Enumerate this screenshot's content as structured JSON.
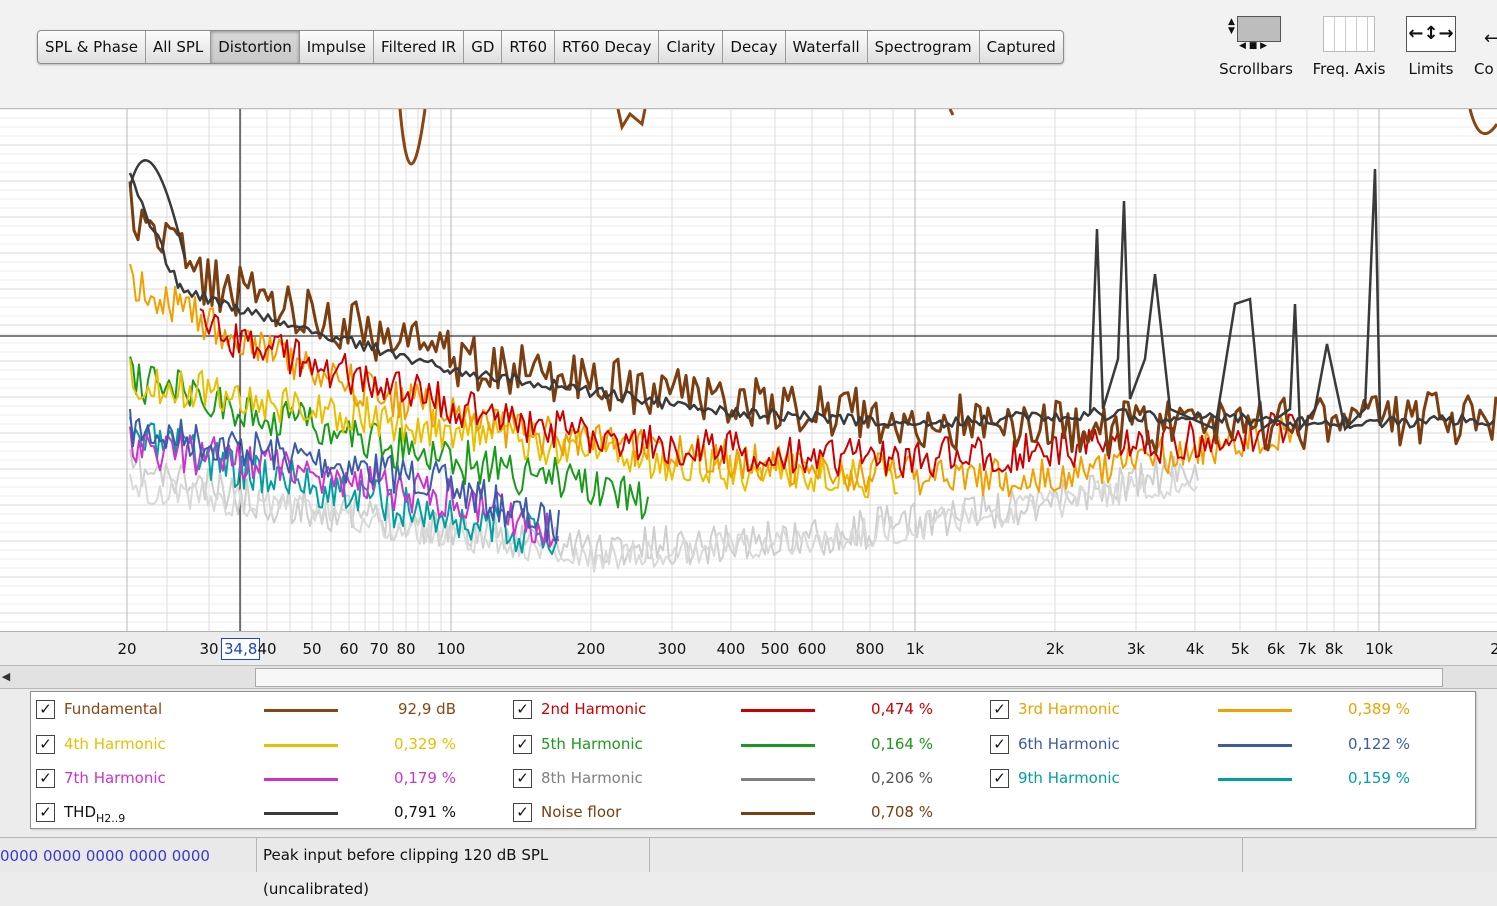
{
  "tabs": [
    {
      "label": "SPL & Phase",
      "active": false
    },
    {
      "label": "All SPL",
      "active": false
    },
    {
      "label": "Distortion",
      "active": true
    },
    {
      "label": "Impulse",
      "active": false
    },
    {
      "label": "Filtered IR",
      "active": false
    },
    {
      "label": "GD",
      "active": false
    },
    {
      "label": "RT60",
      "active": false
    },
    {
      "label": "RT60 Decay",
      "active": false
    },
    {
      "label": "Clarity",
      "active": false
    },
    {
      "label": "Decay",
      "active": false
    },
    {
      "label": "Waterfall",
      "active": false
    },
    {
      "label": "Spectrogram",
      "active": false
    },
    {
      "label": "Captured",
      "active": false
    }
  ],
  "tools": {
    "scrollbars": "Scrollbars",
    "freq_axis": "Freq. Axis",
    "limits": "Limits",
    "controls": "Co"
  },
  "axis": {
    "ticks": [
      "20",
      "30",
      "40",
      "50",
      "60",
      "70",
      "80",
      "100",
      "200",
      "300",
      "400",
      "500",
      "600",
      "800",
      "1k",
      "2k",
      "3k",
      "4k",
      "5k",
      "6k",
      "7k",
      "8k",
      "10k",
      "2"
    ],
    "cursor_value": "34,8"
  },
  "legend": {
    "items": [
      {
        "name": "Fundamental",
        "value": "92,9 dB",
        "color": "#8b4513",
        "checked": true
      },
      {
        "name": "2nd Harmonic",
        "value": "0,474 %",
        "color": "#cc0000",
        "checked": true
      },
      {
        "name": "3rd Harmonic",
        "value": "0,389 %",
        "color": "#f0a000",
        "checked": true
      },
      {
        "name": "4th Harmonic",
        "value": "0,329 %",
        "color": "#e8c000",
        "checked": true
      },
      {
        "name": "5th Harmonic",
        "value": "0,164 %",
        "color": "#1a9a1a",
        "checked": true
      },
      {
        "name": "6th Harmonic",
        "value": "0,122 %",
        "color": "#3a5ca8",
        "checked": true
      },
      {
        "name": "7th Harmonic",
        "value": "0,179 %",
        "color": "#cc33cc",
        "checked": true
      },
      {
        "name": "8th Harmonic",
        "value": "0,206 %",
        "color": "#808080",
        "checked": true
      },
      {
        "name": "9th Harmonic",
        "value": "0,159 %",
        "color": "#00a0a0",
        "checked": true
      },
      {
        "name": "THD",
        "sub": "H2..9",
        "value": "0,791 %",
        "color": "#3a3a3a",
        "checked": true
      },
      {
        "name": "Noise floor",
        "value": "0,708 %",
        "color": "#7a3e10",
        "checked": true
      }
    ]
  },
  "status": {
    "digits": "0000  0000 0000  0000 0000",
    "message": "Peak input before clipping 120 dB SPL (uncalibrated)"
  }
}
